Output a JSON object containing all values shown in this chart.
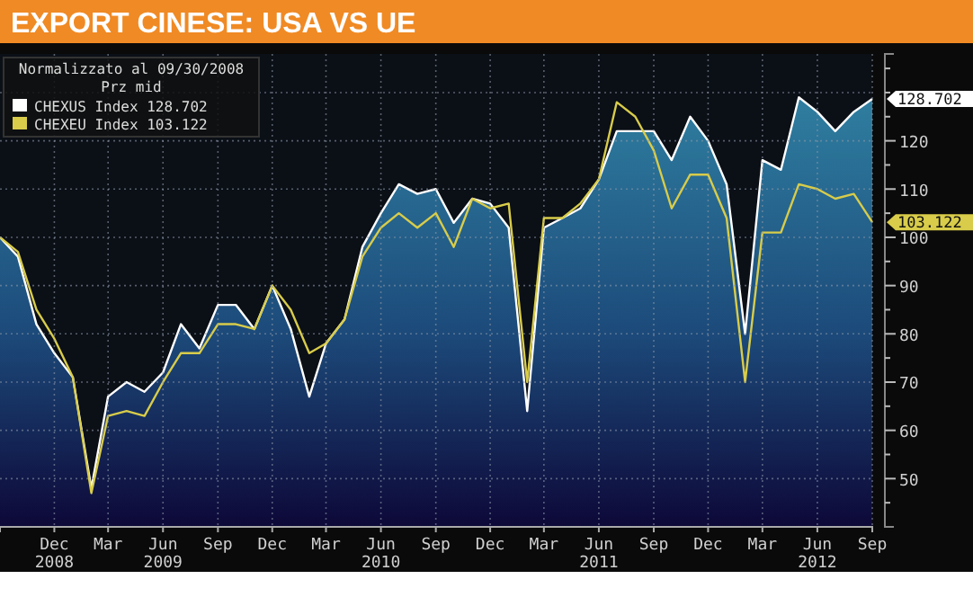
{
  "chart_data": {
    "type": "line",
    "title": "EXPORT CINESE: USA VS UE",
    "legend_title": "Normalizzato al 09/30/2008\nPrz mid",
    "legend": "top left",
    "grid": true,
    "x": [
      "2008-09",
      "2008-10",
      "2008-11",
      "2008-12",
      "2009-01",
      "2009-02",
      "2009-03",
      "2009-04",
      "2009-05",
      "2009-06",
      "2009-07",
      "2009-08",
      "2009-09",
      "2009-10",
      "2009-11",
      "2009-12",
      "2010-01",
      "2010-02",
      "2010-03",
      "2010-04",
      "2010-05",
      "2010-06",
      "2010-07",
      "2010-08",
      "2010-09",
      "2010-10",
      "2010-11",
      "2010-12",
      "2011-01",
      "2011-02",
      "2011-03",
      "2011-04",
      "2011-05",
      "2011-06",
      "2011-07",
      "2011-08",
      "2011-09",
      "2011-10",
      "2011-11",
      "2011-12",
      "2012-01",
      "2012-02",
      "2012-03",
      "2012-04",
      "2012-05",
      "2012-06",
      "2012-07",
      "2012-08",
      "2012-09"
    ],
    "xlim": [
      "2008-09",
      "2012-09"
    ],
    "xticks": [
      {
        "value": "2008-12",
        "label": "Dec\n2008"
      },
      {
        "value": "2009-03",
        "label": "Mar"
      },
      {
        "value": "2009-06",
        "label": "Jun\n2009"
      },
      {
        "value": "2009-09",
        "label": "Sep"
      },
      {
        "value": "2009-12",
        "label": "Dec"
      },
      {
        "value": "2010-03",
        "label": "Mar"
      },
      {
        "value": "2010-06",
        "label": "Jun\n2010"
      },
      {
        "value": "2010-09",
        "label": "Sep"
      },
      {
        "value": "2010-12",
        "label": "Dec"
      },
      {
        "value": "2011-03",
        "label": "Mar"
      },
      {
        "value": "2011-06",
        "label": "Jun\n2011"
      },
      {
        "value": "2011-09",
        "label": "Sep"
      },
      {
        "value": "2011-12",
        "label": "Dec"
      },
      {
        "value": "2012-03",
        "label": "Mar"
      },
      {
        "value": "2012-06",
        "label": "Jun\n2012"
      },
      {
        "value": "2012-09",
        "label": "Sep"
      }
    ],
    "ylim": [
      40,
      138
    ],
    "yticks": [
      {
        "value": 45,
        "label": null
      },
      50,
      {
        "value": 55,
        "label": null
      },
      60,
      {
        "value": 65,
        "label": null
      },
      70,
      {
        "value": 75,
        "label": null
      },
      80,
      {
        "value": 85,
        "label": null
      },
      90,
      {
        "value": 95,
        "label": null
      },
      100,
      {
        "value": 105,
        "label": null
      },
      110,
      {
        "value": 115,
        "label": null
      },
      120,
      {
        "value": 125,
        "label": null
      },
      {
        "value": 130,
        "label": null
      },
      {
        "value": 135,
        "label": null
      }
    ],
    "series": [
      {
        "name": "CHEXUS Index 128.702",
        "type": "area",
        "color": "#ffffff",
        "values": [
          100,
          96,
          82,
          76,
          71,
          48,
          67,
          70,
          68,
          72,
          82,
          77,
          86,
          86,
          81,
          90,
          81,
          67,
          78,
          83,
          98,
          105,
          111,
          109,
          110,
          103,
          108,
          107,
          102,
          64,
          102,
          104,
          106,
          112,
          122,
          122,
          122,
          116,
          125,
          120,
          111,
          80,
          116,
          114,
          129,
          126,
          122,
          126,
          128.702
        ],
        "value_labels": [
          null,
          null,
          null,
          null,
          null,
          null,
          null,
          null,
          null,
          null,
          null,
          null,
          null,
          null,
          null,
          null,
          null,
          null,
          null,
          null,
          null,
          null,
          null,
          null,
          null,
          null,
          null,
          null,
          null,
          null,
          null,
          null,
          null,
          null,
          null,
          null,
          null,
          null,
          null,
          null,
          null,
          null,
          null,
          null,
          null,
          null,
          null,
          null,
          "128.702"
        ]
      },
      {
        "name": "CHEXEU Index 103.122",
        "type": "line",
        "color": "#d8cc4a",
        "values": [
          100,
          97,
          85,
          79,
          71,
          47,
          63,
          64,
          63,
          70,
          76,
          76,
          82,
          82,
          81,
          90,
          85,
          76,
          78,
          83,
          96,
          102,
          105,
          102,
          105,
          98,
          108,
          106,
          107,
          70,
          104,
          104,
          107,
          112,
          128,
          125,
          118,
          106,
          113,
          113,
          104,
          70,
          101,
          101,
          111,
          110,
          108,
          109,
          103.122
        ],
        "value_labels": [
          null,
          null,
          null,
          null,
          null,
          null,
          null,
          null,
          null,
          null,
          null,
          null,
          null,
          null,
          null,
          null,
          null,
          null,
          null,
          null,
          null,
          null,
          null,
          null,
          null,
          null,
          null,
          null,
          null,
          null,
          null,
          null,
          null,
          null,
          null,
          null,
          null,
          null,
          null,
          null,
          null,
          null,
          null,
          null,
          null,
          null,
          null,
          null,
          "103.122"
        ]
      }
    ]
  }
}
